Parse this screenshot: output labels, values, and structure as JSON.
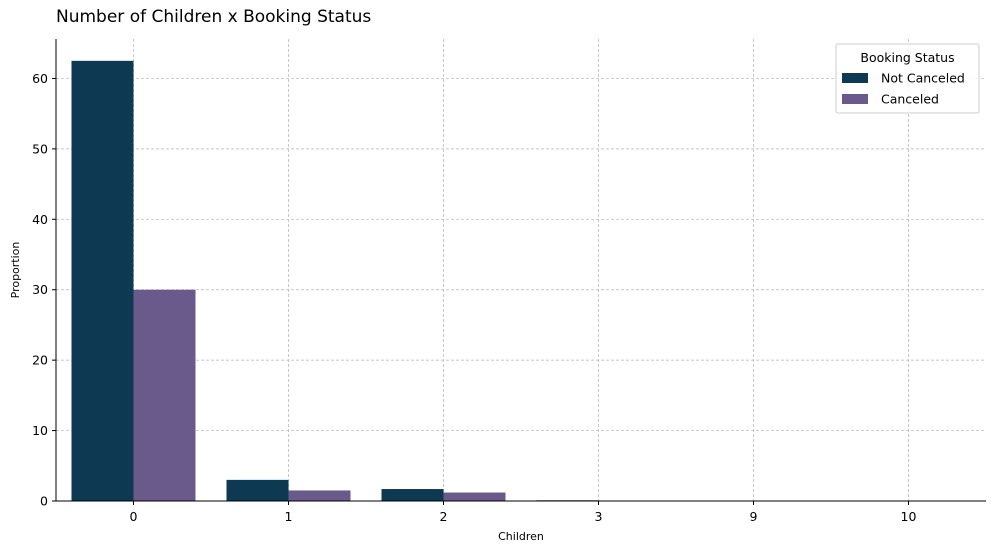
{
  "chart_data": {
    "type": "bar",
    "title": "Number of Children x Booking Status",
    "xlabel": "Children",
    "ylabel": "Proportion",
    "categories": [
      "0",
      "1",
      "2",
      "3",
      "9",
      "10"
    ],
    "series": [
      {
        "name": "Not Canceled",
        "color": "#0d3a52",
        "values": [
          62.5,
          3.0,
          1.7,
          0.1,
          0.0,
          0.0
        ]
      },
      {
        "name": "Canceled",
        "color": "#6a5a8c",
        "values": [
          30.0,
          1.5,
          1.2,
          0.02,
          0.0,
          0.0
        ]
      }
    ],
    "ylim": [
      0,
      65.6
    ],
    "yticks": [
      0,
      10,
      20,
      30,
      40,
      50,
      60
    ],
    "grid": true,
    "legend": {
      "title": "Booking Status",
      "placement": "top-right"
    }
  }
}
